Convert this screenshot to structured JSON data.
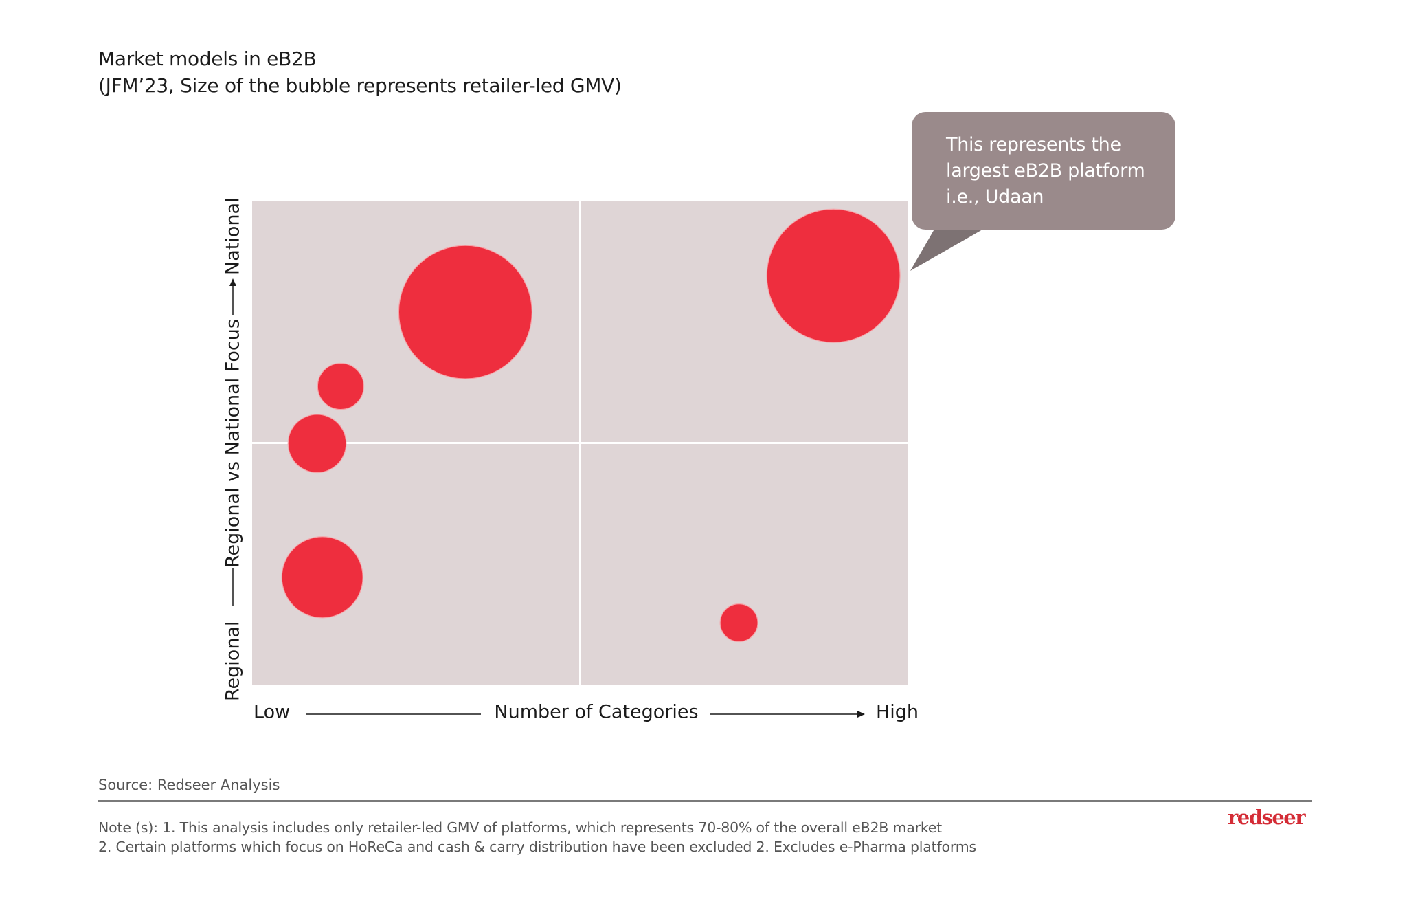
{
  "title": {
    "line1": "Market models in eB2B",
    "line2": "(JFM’23, Size of the bubble represents retailer-led GMV)"
  },
  "callout": {
    "lines": [
      "This represents the",
      " largest eB2B platform",
      " i.e., Udaan"
    ],
    "box_color": "#9a8a8b",
    "tail_color": "#7d7273"
  },
  "colors": {
    "plot_background": "#dfd5d6",
    "bubble": "#ee2e3e",
    "quadrant_lines": "#ffffff",
    "axis_text": "#1a1a1a",
    "logo": "#d42c36"
  },
  "chart_data": {
    "type": "scatter",
    "subtype": "bubble",
    "title": "Market models in eB2B",
    "subtitle": "(JFM’23, Size of the bubble represents retailer-led GMV)",
    "xlabel": "Number of Categories",
    "ylabel": "Regional vs National Focus",
    "x_tick_labels": {
      "min": "Low",
      "max": "High"
    },
    "y_tick_labels": {
      "min": "Regional",
      "max": "National"
    },
    "xlim": [
      0,
      1
    ],
    "ylim": [
      0,
      1
    ],
    "quadrant_divider": {
      "x": 0.5,
      "y": 0.5
    },
    "grid": false,
    "legend": "none",
    "size_meaning": "retailer-led GMV (relative, largest = 100)",
    "points": [
      {
        "label": "",
        "x": 0.325,
        "y": 0.77,
        "size": 100
      },
      {
        "label": "",
        "x": 0.135,
        "y": 0.617,
        "size": 12
      },
      {
        "label": "",
        "x": 0.099,
        "y": 0.499,
        "size": 19
      },
      {
        "label": "",
        "x": 0.107,
        "y": 0.223,
        "size": 37
      },
      {
        "label": "",
        "x": 0.742,
        "y": 0.129,
        "size": 8
      },
      {
        "label": "Udaan",
        "x": 0.886,
        "y": 0.845,
        "size": 100
      }
    ],
    "annotations": [
      "This represents the largest eB2B platform i.e., Udaan"
    ]
  },
  "footer": {
    "source": "Source: Redseer Analysis",
    "note_line1": "Note (s): 1. This analysis includes only retailer-led GMV of platforms, which represents 70-80% of the overall eB2B market",
    "note_line2": "2. Certain platforms which focus on HoReCa and cash & carry distribution have been excluded 2. Excludes e-Pharma platforms",
    "logo_text": "redseer"
  }
}
